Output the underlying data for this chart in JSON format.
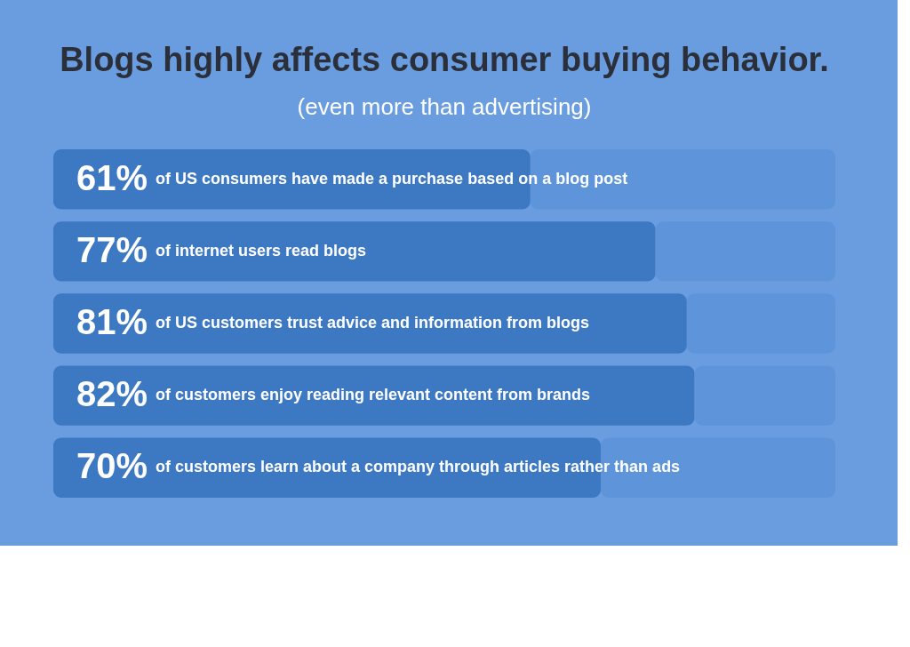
{
  "chart_data": {
    "type": "bar",
    "orientation": "horizontal",
    "stacked": true,
    "title": "Blogs highly affects consumer buying behavior.",
    "subtitle": "(even more than advertising)",
    "categories": [
      "of US consumers have made a purchase based on a blog post",
      "of internet users read blogs",
      "of US customers trust advice and information from blogs",
      "of customers enjoy reading relevant content from brands",
      "of customers learn about a company through articles rather than ads"
    ],
    "series": [
      {
        "color": "#3d78c3",
        "values": [
          61,
          77,
          81,
          82,
          70
        ],
        "value_labels": [
          "61%",
          "77%",
          "81%",
          "82%",
          "70%"
        ]
      },
      {
        "color": "#5e95da",
        "values": [
          39,
          23,
          19,
          18,
          30
        ]
      }
    ],
    "xlim": [
      0,
      100
    ],
    "tick_labels": false
  }
}
